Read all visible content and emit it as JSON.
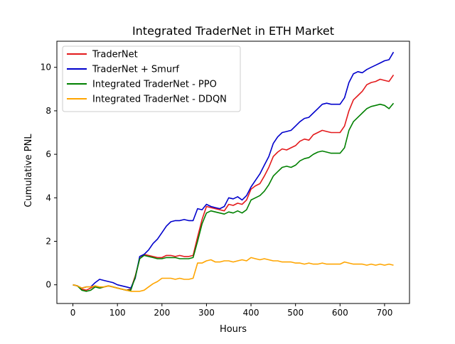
{
  "chart_data": {
    "type": "line",
    "title": "Integrated TraderNet in ETH Market",
    "xlabel": "Hours",
    "ylabel": "Cumulative PNL",
    "xlim": [
      -36,
      756
    ],
    "ylim": [
      -0.86,
      11.2
    ],
    "xticks": [
      0,
      100,
      200,
      300,
      400,
      500,
      600,
      700
    ],
    "yticks": [
      0,
      2,
      4,
      6,
      8,
      10
    ],
    "grid": false,
    "legend_position": "top-left",
    "series": [
      {
        "name": "TraderNet",
        "color": "#e31a1c",
        "points": [
          [
            0,
            0
          ],
          [
            10,
            -0.05
          ],
          [
            20,
            -0.2
          ],
          [
            30,
            -0.25
          ],
          [
            40,
            -0.15
          ],
          [
            50,
            -0.05
          ],
          [
            60,
            -0.15
          ],
          [
            70,
            -0.1
          ],
          [
            80,
            -0.05
          ],
          [
            90,
            -0.1
          ],
          [
            100,
            -0.15
          ],
          [
            110,
            -0.2
          ],
          [
            120,
            -0.25
          ],
          [
            130,
            -0.2
          ],
          [
            140,
            0.4
          ],
          [
            150,
            1.2
          ],
          [
            160,
            1.4
          ],
          [
            170,
            1.35
          ],
          [
            180,
            1.3
          ],
          [
            190,
            1.25
          ],
          [
            200,
            1.25
          ],
          [
            210,
            1.35
          ],
          [
            220,
            1.35
          ],
          [
            230,
            1.3
          ],
          [
            240,
            1.35
          ],
          [
            250,
            1.3
          ],
          [
            260,
            1.3
          ],
          [
            270,
            1.35
          ],
          [
            280,
            2.2
          ],
          [
            290,
            3.0
          ],
          [
            300,
            3.6
          ],
          [
            310,
            3.55
          ],
          [
            320,
            3.5
          ],
          [
            330,
            3.45
          ],
          [
            340,
            3.4
          ],
          [
            350,
            3.7
          ],
          [
            360,
            3.65
          ],
          [
            370,
            3.75
          ],
          [
            380,
            3.7
          ],
          [
            390,
            3.9
          ],
          [
            400,
            4.4
          ],
          [
            410,
            4.55
          ],
          [
            420,
            4.65
          ],
          [
            430,
            5.0
          ],
          [
            440,
            5.4
          ],
          [
            450,
            5.9
          ],
          [
            460,
            6.1
          ],
          [
            470,
            6.25
          ],
          [
            480,
            6.2
          ],
          [
            490,
            6.3
          ],
          [
            500,
            6.4
          ],
          [
            510,
            6.6
          ],
          [
            520,
            6.7
          ],
          [
            530,
            6.65
          ],
          [
            540,
            6.9
          ],
          [
            550,
            7.0
          ],
          [
            560,
            7.1
          ],
          [
            570,
            7.05
          ],
          [
            580,
            7.0
          ],
          [
            590,
            7.0
          ],
          [
            600,
            7.0
          ],
          [
            610,
            7.3
          ],
          [
            620,
            8.0
          ],
          [
            630,
            8.5
          ],
          [
            640,
            8.7
          ],
          [
            650,
            8.9
          ],
          [
            660,
            9.2
          ],
          [
            670,
            9.3
          ],
          [
            680,
            9.35
          ],
          [
            690,
            9.45
          ],
          [
            700,
            9.4
          ],
          [
            710,
            9.35
          ],
          [
            720,
            9.65
          ]
        ]
      },
      {
        "name": "TraderNet + Smurf",
        "color": "#0000cc",
        "points": [
          [
            0,
            0
          ],
          [
            10,
            -0.05
          ],
          [
            20,
            -0.15
          ],
          [
            30,
            -0.1
          ],
          [
            40,
            -0.1
          ],
          [
            50,
            0.1
          ],
          [
            60,
            0.25
          ],
          [
            70,
            0.2
          ],
          [
            80,
            0.15
          ],
          [
            90,
            0.1
          ],
          [
            100,
            0.0
          ],
          [
            110,
            -0.05
          ],
          [
            120,
            -0.1
          ],
          [
            130,
            -0.15
          ],
          [
            140,
            0.3
          ],
          [
            150,
            1.3
          ],
          [
            160,
            1.4
          ],
          [
            170,
            1.6
          ],
          [
            180,
            1.9
          ],
          [
            190,
            2.1
          ],
          [
            200,
            2.4
          ],
          [
            210,
            2.7
          ],
          [
            220,
            2.9
          ],
          [
            230,
            2.95
          ],
          [
            240,
            2.95
          ],
          [
            250,
            3.0
          ],
          [
            260,
            2.95
          ],
          [
            270,
            2.95
          ],
          [
            280,
            3.5
          ],
          [
            290,
            3.45
          ],
          [
            300,
            3.7
          ],
          [
            310,
            3.6
          ],
          [
            320,
            3.55
          ],
          [
            330,
            3.5
          ],
          [
            340,
            3.6
          ],
          [
            350,
            4.0
          ],
          [
            360,
            3.95
          ],
          [
            370,
            4.05
          ],
          [
            380,
            3.9
          ],
          [
            390,
            4.1
          ],
          [
            400,
            4.5
          ],
          [
            410,
            4.8
          ],
          [
            420,
            5.1
          ],
          [
            430,
            5.5
          ],
          [
            440,
            5.9
          ],
          [
            450,
            6.5
          ],
          [
            460,
            6.8
          ],
          [
            470,
            7.0
          ],
          [
            480,
            7.05
          ],
          [
            490,
            7.1
          ],
          [
            500,
            7.3
          ],
          [
            510,
            7.5
          ],
          [
            520,
            7.65
          ],
          [
            530,
            7.7
          ],
          [
            540,
            7.9
          ],
          [
            550,
            8.1
          ],
          [
            560,
            8.3
          ],
          [
            570,
            8.35
          ],
          [
            580,
            8.3
          ],
          [
            590,
            8.3
          ],
          [
            600,
            8.3
          ],
          [
            610,
            8.6
          ],
          [
            620,
            9.3
          ],
          [
            630,
            9.7
          ],
          [
            640,
            9.8
          ],
          [
            650,
            9.75
          ],
          [
            660,
            9.9
          ],
          [
            670,
            10.0
          ],
          [
            680,
            10.1
          ],
          [
            690,
            10.2
          ],
          [
            700,
            10.3
          ],
          [
            710,
            10.35
          ],
          [
            720,
            10.7
          ]
        ]
      },
      {
        "name": "Integrated TraderNet - PPO",
        "color": "#008000",
        "points": [
          [
            0,
            0
          ],
          [
            10,
            -0.05
          ],
          [
            20,
            -0.25
          ],
          [
            30,
            -0.3
          ],
          [
            40,
            -0.25
          ],
          [
            50,
            -0.1
          ],
          [
            60,
            -0.15
          ],
          [
            70,
            -0.1
          ],
          [
            80,
            -0.05
          ],
          [
            90,
            -0.1
          ],
          [
            100,
            -0.15
          ],
          [
            110,
            -0.2
          ],
          [
            120,
            -0.25
          ],
          [
            130,
            -0.25
          ],
          [
            140,
            0.35
          ],
          [
            150,
            1.2
          ],
          [
            160,
            1.35
          ],
          [
            170,
            1.3
          ],
          [
            180,
            1.25
          ],
          [
            190,
            1.2
          ],
          [
            200,
            1.2
          ],
          [
            210,
            1.25
          ],
          [
            220,
            1.25
          ],
          [
            230,
            1.25
          ],
          [
            240,
            1.2
          ],
          [
            250,
            1.2
          ],
          [
            260,
            1.2
          ],
          [
            270,
            1.25
          ],
          [
            280,
            2.0
          ],
          [
            290,
            2.8
          ],
          [
            300,
            3.3
          ],
          [
            310,
            3.4
          ],
          [
            320,
            3.35
          ],
          [
            330,
            3.3
          ],
          [
            340,
            3.25
          ],
          [
            350,
            3.35
          ],
          [
            360,
            3.3
          ],
          [
            370,
            3.4
          ],
          [
            380,
            3.3
          ],
          [
            390,
            3.45
          ],
          [
            400,
            3.9
          ],
          [
            410,
            4.0
          ],
          [
            420,
            4.1
          ],
          [
            430,
            4.3
          ],
          [
            440,
            4.6
          ],
          [
            450,
            5.0
          ],
          [
            460,
            5.2
          ],
          [
            470,
            5.4
          ],
          [
            480,
            5.45
          ],
          [
            490,
            5.4
          ],
          [
            500,
            5.5
          ],
          [
            510,
            5.7
          ],
          [
            520,
            5.8
          ],
          [
            530,
            5.85
          ],
          [
            540,
            6.0
          ],
          [
            550,
            6.1
          ],
          [
            560,
            6.15
          ],
          [
            570,
            6.1
          ],
          [
            580,
            6.05
          ],
          [
            590,
            6.05
          ],
          [
            600,
            6.05
          ],
          [
            610,
            6.3
          ],
          [
            620,
            7.1
          ],
          [
            630,
            7.5
          ],
          [
            640,
            7.7
          ],
          [
            650,
            7.9
          ],
          [
            660,
            8.1
          ],
          [
            670,
            8.2
          ],
          [
            680,
            8.25
          ],
          [
            690,
            8.3
          ],
          [
            700,
            8.25
          ],
          [
            710,
            8.1
          ],
          [
            720,
            8.35
          ]
        ]
      },
      {
        "name": "Integrated TraderNet - DDQN",
        "color": "#ffa500",
        "points": [
          [
            0,
            0
          ],
          [
            10,
            -0.05
          ],
          [
            20,
            -0.15
          ],
          [
            30,
            -0.1
          ],
          [
            40,
            -0.1
          ],
          [
            50,
            -0.05
          ],
          [
            60,
            -0.1
          ],
          [
            70,
            -0.1
          ],
          [
            80,
            -0.05
          ],
          [
            90,
            -0.1
          ],
          [
            100,
            -0.15
          ],
          [
            110,
            -0.2
          ],
          [
            120,
            -0.25
          ],
          [
            130,
            -0.3
          ],
          [
            140,
            -0.3
          ],
          [
            150,
            -0.3
          ],
          [
            160,
            -0.25
          ],
          [
            170,
            -0.1
          ],
          [
            180,
            0.05
          ],
          [
            190,
            0.15
          ],
          [
            200,
            0.3
          ],
          [
            210,
            0.3
          ],
          [
            220,
            0.3
          ],
          [
            230,
            0.25
          ],
          [
            240,
            0.3
          ],
          [
            250,
            0.25
          ],
          [
            260,
            0.25
          ],
          [
            270,
            0.3
          ],
          [
            280,
            1.0
          ],
          [
            290,
            1.0
          ],
          [
            300,
            1.1
          ],
          [
            310,
            1.15
          ],
          [
            320,
            1.05
          ],
          [
            330,
            1.05
          ],
          [
            340,
            1.1
          ],
          [
            350,
            1.1
          ],
          [
            360,
            1.05
          ],
          [
            370,
            1.1
          ],
          [
            380,
            1.15
          ],
          [
            390,
            1.1
          ],
          [
            400,
            1.25
          ],
          [
            410,
            1.2
          ],
          [
            420,
            1.15
          ],
          [
            430,
            1.2
          ],
          [
            440,
            1.15
          ],
          [
            450,
            1.1
          ],
          [
            460,
            1.1
          ],
          [
            470,
            1.05
          ],
          [
            480,
            1.05
          ],
          [
            490,
            1.05
          ],
          [
            500,
            1.0
          ],
          [
            510,
            1.0
          ],
          [
            520,
            0.95
          ],
          [
            530,
            1.0
          ],
          [
            540,
            0.95
          ],
          [
            550,
            0.95
          ],
          [
            560,
            1.0
          ],
          [
            570,
            0.95
          ],
          [
            580,
            0.95
          ],
          [
            590,
            0.95
          ],
          [
            600,
            0.95
          ],
          [
            610,
            1.05
          ],
          [
            620,
            1.0
          ],
          [
            630,
            0.95
          ],
          [
            640,
            0.95
          ],
          [
            650,
            0.95
          ],
          [
            660,
            0.9
          ],
          [
            670,
            0.95
          ],
          [
            680,
            0.9
          ],
          [
            690,
            0.95
          ],
          [
            700,
            0.9
          ],
          [
            710,
            0.95
          ],
          [
            720,
            0.9
          ]
        ]
      }
    ]
  }
}
